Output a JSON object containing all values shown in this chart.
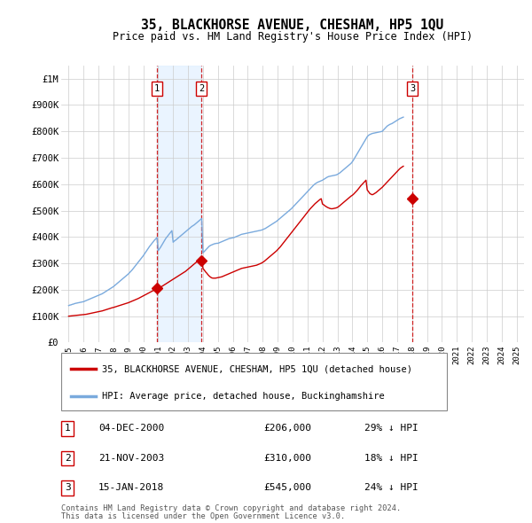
{
  "title": "35, BLACKHORSE AVENUE, CHESHAM, HP5 1QU",
  "subtitle": "Price paid vs. HM Land Registry's House Price Index (HPI)",
  "legend_label_red": "35, BLACKHORSE AVENUE, CHESHAM, HP5 1QU (detached house)",
  "legend_label_blue": "HPI: Average price, detached house, Buckinghamshire",
  "footer1": "Contains HM Land Registry data © Crown copyright and database right 2024.",
  "footer2": "This data is licensed under the Open Government Licence v3.0.",
  "transactions": [
    {
      "num": 1,
      "date": "04-DEC-2000",
      "price": 206000,
      "hpi_diff": "29% ↓ HPI",
      "year": 2000.92
    },
    {
      "num": 2,
      "date": "21-NOV-2003",
      "price": 310000,
      "hpi_diff": "18% ↓ HPI",
      "year": 2003.89
    },
    {
      "num": 3,
      "date": "15-JAN-2018",
      "price": 545000,
      "hpi_diff": "24% ↓ HPI",
      "year": 2018.04
    }
  ],
  "hpi_monthly": {
    "start_year": 1995.0,
    "end_year": 2025.5,
    "values": [
      140000,
      142000,
      143000,
      145000,
      146000,
      148000,
      149000,
      150000,
      151000,
      152000,
      153000,
      154000,
      155000,
      157000,
      159000,
      161000,
      163000,
      165000,
      167000,
      169000,
      171000,
      173000,
      175000,
      177000,
      179000,
      181000,
      183000,
      185000,
      188000,
      191000,
      194000,
      197000,
      200000,
      203000,
      206000,
      209000,
      212000,
      216000,
      220000,
      224000,
      228000,
      232000,
      236000,
      240000,
      244000,
      248000,
      252000,
      256000,
      260000,
      265000,
      270000,
      275000,
      281000,
      287000,
      293000,
      299000,
      305000,
      311000,
      317000,
      323000,
      329000,
      336000,
      343000,
      350000,
      357000,
      364000,
      370000,
      376000,
      382000,
      388000,
      393000,
      398000,
      348000,
      355000,
      362000,
      370000,
      378000,
      386000,
      394000,
      400000,
      406000,
      412000,
      418000,
      424000,
      380000,
      385000,
      388000,
      392000,
      396000,
      400000,
      404000,
      408000,
      412000,
      416000,
      420000,
      424000,
      428000,
      432000,
      436000,
      440000,
      443000,
      446000,
      450000,
      454000,
      458000,
      462000,
      466000,
      470000,
      340000,
      345000,
      350000,
      355000,
      360000,
      365000,
      368000,
      370000,
      372000,
      374000,
      375000,
      376000,
      376000,
      378000,
      380000,
      382000,
      384000,
      386000,
      388000,
      390000,
      392000,
      394000,
      395000,
      396000,
      397000,
      398000,
      400000,
      402000,
      404000,
      406000,
      408000,
      410000,
      411000,
      412000,
      413000,
      414000,
      415000,
      416000,
      417000,
      418000,
      419000,
      420000,
      421000,
      422000,
      423000,
      424000,
      425000,
      426000,
      428000,
      430000,
      432000,
      435000,
      438000,
      441000,
      444000,
      447000,
      450000,
      453000,
      456000,
      459000,
      463000,
      467000,
      471000,
      475000,
      479000,
      483000,
      487000,
      491000,
      495000,
      499000,
      503000,
      507000,
      512000,
      517000,
      522000,
      527000,
      532000,
      537000,
      542000,
      547000,
      552000,
      557000,
      562000,
      567000,
      572000,
      577000,
      582000,
      587000,
      592000,
      597000,
      601000,
      604000,
      607000,
      609000,
      611000,
      613000,
      615000,
      618000,
      621000,
      624000,
      627000,
      629000,
      630000,
      631000,
      632000,
      633000,
      634000,
      635000,
      637000,
      640000,
      643000,
      647000,
      651000,
      655000,
      659000,
      663000,
      667000,
      671000,
      675000,
      679000,
      685000,
      692000,
      700000,
      708000,
      716000,
      724000,
      732000,
      740000,
      748000,
      756000,
      764000,
      772000,
      780000,
      785000,
      788000,
      790000,
      792000,
      793000,
      794000,
      795000,
      796000,
      797000,
      798000,
      799000,
      800000,
      805000,
      810000,
      815000,
      820000,
      823000,
      826000,
      828000,
      830000,
      833000,
      836000,
      839000,
      842000,
      845000,
      848000,
      850000,
      852000,
      854000
    ]
  },
  "price_monthly": {
    "start_year": 1995.0,
    "end_year": 2025.5,
    "values": [
      100000,
      100500,
      101000,
      101500,
      102000,
      102500,
      103000,
      103500,
      104000,
      104500,
      105000,
      105500,
      106000,
      106500,
      107000,
      108000,
      109000,
      110000,
      111000,
      112000,
      113000,
      114000,
      115000,
      116000,
      117000,
      118000,
      119000,
      120000,
      121500,
      123000,
      124500,
      126000,
      127500,
      129000,
      130500,
      132000,
      133000,
      134500,
      136000,
      137500,
      139000,
      140500,
      142000,
      143500,
      145000,
      146500,
      148000,
      149500,
      151000,
      153000,
      155000,
      157000,
      159000,
      161000,
      163000,
      165000,
      167000,
      169500,
      172000,
      174500,
      177000,
      179500,
      182000,
      184500,
      187000,
      189500,
      192000,
      194500,
      197000,
      199500,
      202000,
      204500,
      206000,
      208000,
      210000,
      213000,
      216000,
      219000,
      222000,
      225000,
      228000,
      231000,
      234000,
      237000,
      240000,
      243000,
      246000,
      249000,
      252000,
      255000,
      258000,
      261000,
      264000,
      267000,
      270000,
      274000,
      278000,
      282000,
      286000,
      290000,
      294000,
      298000,
      302000,
      306000,
      310000,
      311000,
      312000,
      313000,
      280000,
      275000,
      268000,
      263000,
      257000,
      252000,
      248000,
      245000,
      244000,
      244000,
      244000,
      245000,
      246000,
      247000,
      248000,
      249000,
      251000,
      253000,
      255000,
      257000,
      259000,
      261000,
      263000,
      265000,
      267000,
      269000,
      271000,
      273000,
      275000,
      277000,
      279000,
      281000,
      282000,
      283000,
      284000,
      285000,
      286000,
      287000,
      288000,
      289000,
      290000,
      291000,
      292000,
      293000,
      295000,
      297000,
      299000,
      301000,
      304000,
      307000,
      311000,
      315000,
      319000,
      323000,
      327000,
      331000,
      335000,
      339000,
      343000,
      347000,
      352000,
      357000,
      362000,
      368000,
      374000,
      380000,
      386000,
      392000,
      398000,
      404000,
      410000,
      416000,
      422000,
      428000,
      434000,
      440000,
      446000,
      452000,
      458000,
      464000,
      470000,
      476000,
      482000,
      488000,
      494000,
      500000,
      506000,
      511000,
      516000,
      521000,
      526000,
      530000,
      534000,
      538000,
      542000,
      545000,
      525000,
      522000,
      518000,
      515000,
      512000,
      510000,
      508000,
      507000,
      507000,
      508000,
      509000,
      510000,
      512000,
      515000,
      519000,
      523000,
      527000,
      531000,
      535000,
      539000,
      543000,
      547000,
      551000,
      555000,
      558000,
      562000,
      567000,
      572000,
      577000,
      583000,
      589000,
      595000,
      600000,
      605000,
      610000,
      615000,
      578000,
      572000,
      565000,
      562000,
      560000,
      562000,
      565000,
      568000,
      572000,
      576000,
      580000,
      584000,
      588000,
      593000,
      598000,
      603000,
      608000,
      613000,
      618000,
      623000,
      628000,
      633000,
      638000,
      643000,
      648000,
      653000,
      658000,
      662000,
      665000,
      668000
    ]
  },
  "ylim": [
    0,
    1050000
  ],
  "yticks": [
    0,
    100000,
    200000,
    300000,
    400000,
    500000,
    600000,
    700000,
    800000,
    900000,
    1000000
  ],
  "ytick_labels": [
    "£0",
    "£100K",
    "£200K",
    "£300K",
    "£400K",
    "£500K",
    "£600K",
    "£700K",
    "£800K",
    "£900K",
    "£1M"
  ],
  "xlim_start": 1994.5,
  "xlim_end": 2025.5,
  "xticks": [
    1995,
    1996,
    1997,
    1998,
    1999,
    2000,
    2001,
    2002,
    2003,
    2004,
    2005,
    2006,
    2007,
    2008,
    2009,
    2010,
    2011,
    2012,
    2013,
    2014,
    2015,
    2016,
    2017,
    2018,
    2019,
    2020,
    2021,
    2022,
    2023,
    2024,
    2025
  ],
  "color_red": "#cc0000",
  "color_blue": "#7aaadd",
  "color_grid": "#cccccc",
  "color_bg_shade": "#ddeeff",
  "background_color": "#ffffff"
}
